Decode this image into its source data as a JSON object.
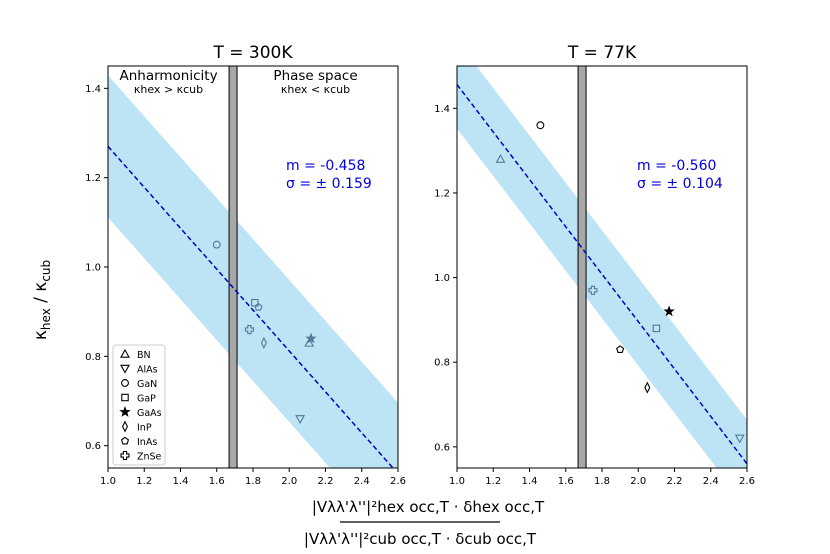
{
  "colors": {
    "band": "#87ceeb",
    "fit": "#0000cc",
    "annot": "#0000dd",
    "divider": "#a8a8a8",
    "marker": "#4f7a99"
  },
  "figure": {
    "ylabel": "κhex / κcub",
    "xlabel_top": "|Vλλ'λ''|²hex occ,T · δhex occ,T",
    "xlabel_bottom": "|Vλλ'λ''|²cub occ,T · δcub occ,T"
  },
  "chart_data": [
    {
      "type": "scatter",
      "title": "T = 300K",
      "xlim": [
        1.0,
        2.6
      ],
      "ylim": [
        0.55,
        1.45
      ],
      "xticks": [
        "1.0",
        "1.2",
        "1.4",
        "1.6",
        "1.8",
        "2.0",
        "2.2",
        "2.4",
        "2.6"
      ],
      "yticks": [
        "0.6",
        "0.8",
        "1.0",
        "1.2",
        "1.4"
      ],
      "fit": {
        "slope": -0.458,
        "intercept": 1.728,
        "sigma": 0.159
      },
      "divider_x": 1.69,
      "annotation_m": "m = -0.458",
      "annotation_sigma": "σ = ± 0.159",
      "region_left_title": "Anharmonicity",
      "region_left_sub": "κhex > κcub",
      "region_right_title": "Phase space",
      "region_right_sub": "κhex < κcub",
      "points": [
        {
          "label": "BN",
          "marker": "triangle-up",
          "x": 2.11,
          "y": 0.83
        },
        {
          "label": "AlAs",
          "marker": "triangle-down",
          "x": 2.06,
          "y": 0.66
        },
        {
          "label": "GaN",
          "marker": "circle",
          "x": 1.6,
          "y": 1.05
        },
        {
          "label": "GaP",
          "marker": "square",
          "x": 1.81,
          "y": 0.92
        },
        {
          "label": "GaAs",
          "marker": "star",
          "x": 2.12,
          "y": 0.84
        },
        {
          "label": "InP",
          "marker": "diamond",
          "x": 1.86,
          "y": 0.83
        },
        {
          "label": "InAs",
          "marker": "pentagon",
          "x": 1.83,
          "y": 0.91
        },
        {
          "label": "ZnSe",
          "marker": "plus",
          "x": 1.78,
          "y": 0.86
        }
      ],
      "legend": [
        "BN",
        "AlAs",
        "GaN",
        "GaP",
        "GaAs",
        "InP",
        "InAs",
        "ZnSe"
      ]
    },
    {
      "type": "scatter",
      "title": "T = 77K",
      "xlim": [
        1.0,
        2.6
      ],
      "ylim": [
        0.55,
        1.5
      ],
      "xticks": [
        "1.0",
        "1.2",
        "1.4",
        "1.6",
        "1.8",
        "2.0",
        "2.2",
        "2.4",
        "2.6"
      ],
      "yticks": [
        "0.6",
        "0.8",
        "1.0",
        "1.2",
        "1.4"
      ],
      "fit": {
        "slope": -0.56,
        "intercept": 2.016,
        "sigma": 0.104
      },
      "divider_x": 1.69,
      "annotation_m": "m = -0.560",
      "annotation_sigma": "σ = ± 0.104",
      "points": [
        {
          "label": "BN",
          "marker": "triangle-up",
          "x": 1.24,
          "y": 1.28
        },
        {
          "label": "AlAs",
          "marker": "triangle-down",
          "x": 2.56,
          "y": 0.62
        },
        {
          "label": "GaN",
          "marker": "circle",
          "x": 1.46,
          "y": 1.36
        },
        {
          "label": "GaP",
          "marker": "square",
          "x": 2.1,
          "y": 0.88
        },
        {
          "label": "GaAs",
          "marker": "star",
          "x": 2.17,
          "y": 0.92
        },
        {
          "label": "InP",
          "marker": "diamond",
          "x": 2.05,
          "y": 0.74
        },
        {
          "label": "InAs",
          "marker": "pentagon",
          "x": 1.9,
          "y": 0.83
        },
        {
          "label": "ZnSe",
          "marker": "plus",
          "x": 1.75,
          "y": 0.97
        }
      ]
    }
  ]
}
